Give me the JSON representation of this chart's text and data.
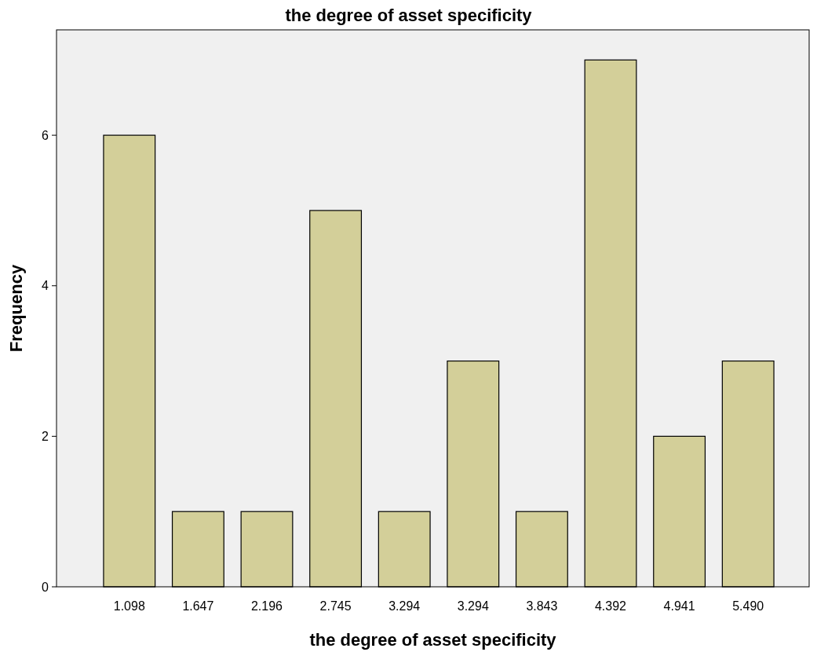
{
  "chart_data": {
    "type": "bar",
    "title": "the degree of asset specificity",
    "xlabel": "the degree of asset specificity",
    "ylabel": "Frequency",
    "categories": [
      "1.098",
      "1.647",
      "2.196",
      "2.745",
      "3.294",
      "3.294",
      "3.843",
      "4.392",
      "4.941",
      "5.490"
    ],
    "values": [
      6,
      1,
      1,
      5,
      1,
      3,
      1,
      7,
      2,
      3
    ],
    "color": "#d3cf99",
    "ylim": [
      0,
      7.4
    ],
    "yticks": [
      0,
      2,
      4,
      6
    ],
    "grid": false
  }
}
